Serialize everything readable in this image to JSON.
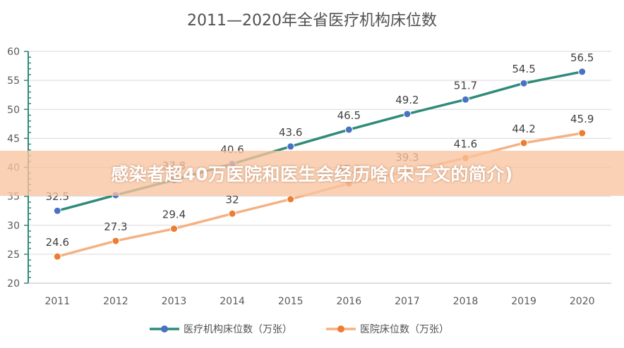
{
  "chart_data": {
    "type": "line",
    "title": "2011—2020年全省医疗机构床位数",
    "categories": [
      "2011",
      "2012",
      "2013",
      "2014",
      "2015",
      "2016",
      "2017",
      "2018",
      "2019",
      "2020"
    ],
    "ylim": [
      20,
      60
    ],
    "yticks": [
      "20",
      "25",
      "30",
      "35",
      "40",
      "45",
      "50",
      "55",
      "60"
    ],
    "grid": true,
    "legend_position": "bottom",
    "series": [
      {
        "name": "医疗机构床位数（万张）",
        "color": "#2e8b7a",
        "marker_color": "#4a72c4",
        "values": [
          32.5,
          35.2,
          37.8,
          40.6,
          43.6,
          46.5,
          49.2,
          51.7,
          54.5,
          56.5
        ],
        "labels": [
          "32.5",
          "",
          "37.8",
          "40.6",
          "43.6",
          "46.5",
          "49.2",
          "51.7",
          "54.5",
          "56.5"
        ]
      },
      {
        "name": "医院床位数（万张）",
        "color": "#f4b183",
        "marker_color": "#ed7d31",
        "values": [
          24.6,
          27.3,
          29.4,
          32,
          34.5,
          37.2,
          39.3,
          41.6,
          44.2,
          45.9
        ],
        "labels": [
          "24.6",
          "27.3",
          "29.4",
          "32",
          "",
          "37.2",
          "39.3",
          "41.6",
          "44.2",
          "45.9"
        ]
      }
    ]
  },
  "banner": {
    "text": "感染者超40万医院和医生会经历啥(宋子文的简介)"
  }
}
